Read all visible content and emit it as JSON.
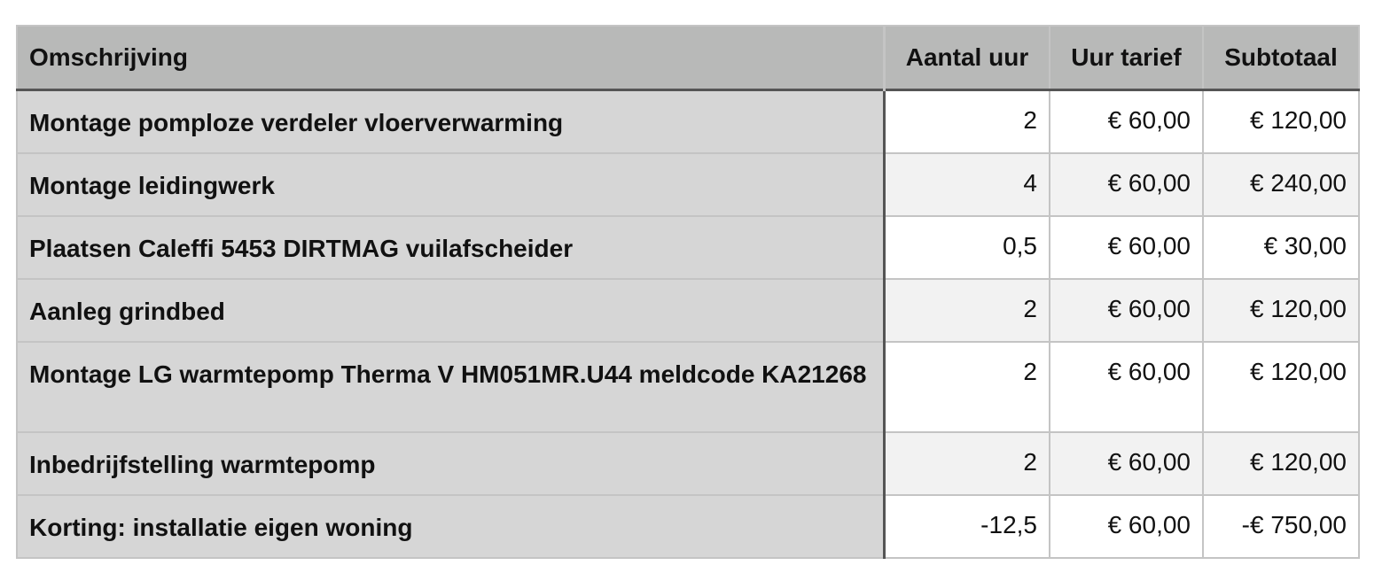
{
  "headers": [
    "Omschrijving",
    "Aantal uur",
    "Uur tarief",
    "Subtotaal"
  ],
  "rows": [
    {
      "desc": "Montage pomploze verdeler vloerverwarming",
      "hours": "2",
      "rate": "€ 60,00",
      "subtotal": "€ 120,00"
    },
    {
      "desc": "Montage leidingwerk",
      "hours": "4",
      "rate": "€ 60,00",
      "subtotal": "€ 240,00"
    },
    {
      "desc": "Plaatsen Caleffi 5453 DIRTMAG vuilafscheider",
      "hours": "0,5",
      "rate": "€ 60,00",
      "subtotal": "€ 30,00"
    },
    {
      "desc": "Aanleg grindbed",
      "hours": "2",
      "rate": "€ 60,00",
      "subtotal": "€ 120,00"
    },
    {
      "desc": "Montage LG warmtepomp Therma V HM051MR.U44 meldcode KA21268",
      "hours": "2",
      "rate": "€ 60,00",
      "subtotal": "€ 120,00"
    },
    {
      "desc": "Inbedrijfstelling warmtepomp",
      "hours": "2",
      "rate": "€ 60,00",
      "subtotal": "€ 120,00"
    },
    {
      "desc": "Korting: installatie eigen woning",
      "hours": "-12,5",
      "rate": "€ 60,00",
      "subtotal": "-€ 750,00"
    }
  ]
}
